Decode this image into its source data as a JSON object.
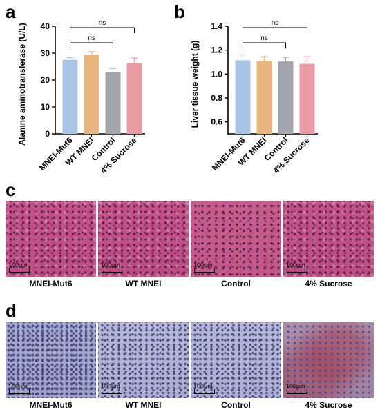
{
  "panels": {
    "a_letter": "a",
    "b_letter": "b",
    "c_letter": "c",
    "d_letter": "d"
  },
  "chart_data": [
    {
      "type": "bar",
      "panel": "a",
      "categories": [
        "MNEI-Mut6",
        "WT MNEI",
        "Control",
        "4% Sucrose"
      ],
      "values": [
        27.5,
        29.5,
        23.0,
        26.3
      ],
      "errors": [
        0.8,
        1.0,
        1.4,
        1.9
      ],
      "colors": [
        "#a8c4e6",
        "#e9b57f",
        "#a3a5ac",
        "#e99aa3"
      ],
      "ylabel": "Alanine aminotransferase (U/L)",
      "ylim": [
        0,
        40
      ],
      "yticks": [
        0,
        10,
        20,
        30,
        40
      ],
      "brackets": [
        {
          "from": 0,
          "to": 2,
          "label": "ns",
          "level": 0
        },
        {
          "from": 0,
          "to": 3,
          "label": "ns",
          "level": 1
        }
      ]
    },
    {
      "type": "bar",
      "panel": "b",
      "categories": [
        "MNEI-Mut6",
        "WT MNEI",
        "Control",
        "4% Sucrose"
      ],
      "values": [
        1.115,
        1.11,
        1.105,
        1.085
      ],
      "errors": [
        0.045,
        0.035,
        0.035,
        0.06
      ],
      "colors": [
        "#a8c4e6",
        "#e9b57f",
        "#a3a5ac",
        "#e99aa3"
      ],
      "ylabel": "Liver tissue weight (g)",
      "ylim": [
        0.5,
        1.4
      ],
      "yticks": [
        0.6,
        0.8,
        1.0,
        1.2,
        1.4
      ],
      "tick_labels": [
        "0.6",
        "0.8",
        "1.0",
        "1.2",
        "1.4"
      ],
      "brackets": [
        {
          "from": 0,
          "to": 2,
          "label": "ns",
          "level": 0
        },
        {
          "from": 0,
          "to": 3,
          "label": "ns",
          "level": 1
        }
      ]
    }
  ],
  "histology": {
    "scale_label": "100μm",
    "c_captions": [
      "MNEI-Mut6",
      "WT MNEI",
      "Control",
      "4% Sucrose"
    ],
    "d_captions": [
      "MNEI-Mut6",
      "WT MNEI",
      "Control",
      "4% Sucrose"
    ]
  }
}
